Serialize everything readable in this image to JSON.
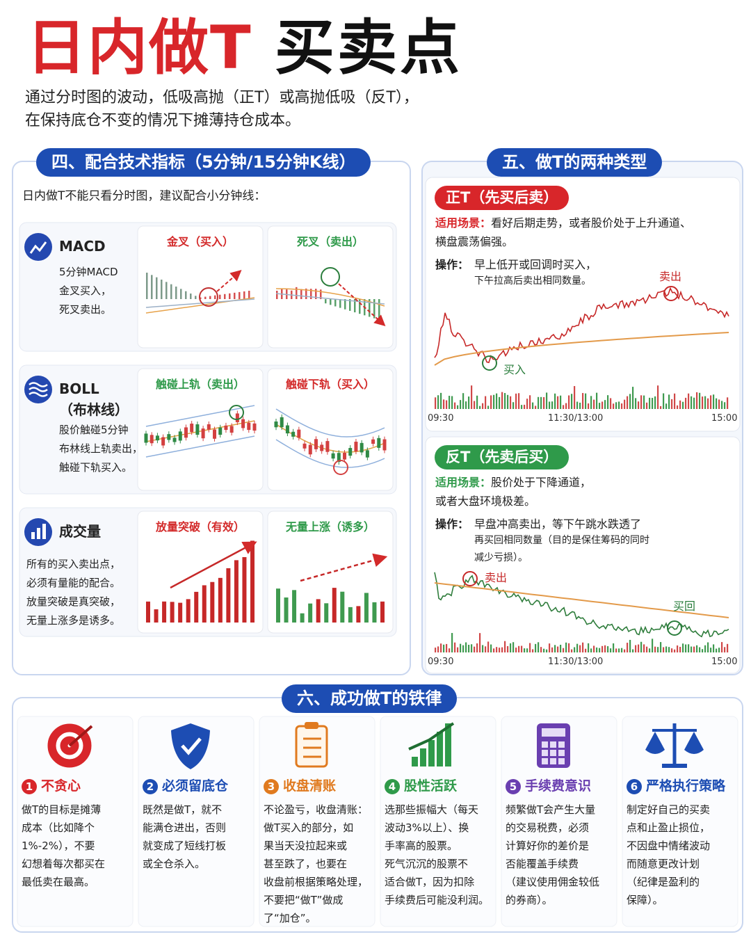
{
  "header": {
    "title_red": "日内做T",
    "title_black": "买卖点",
    "intro": [
      "通过分时图的波动，低吸高抛（正T）或高抛低吸（反T），",
      "在保持底仓不变的情况下摊薄持仓成本。"
    ]
  },
  "indicators": {
    "heading": "四、配合技术指标（5分钟/15分钟K线）",
    "note": "日内做T不能只看分时图，建议配合小分钟线：",
    "rows": [
      {
        "name": [
          "MACD"
        ],
        "desc": [
          "5分钟MACD",
          "金叉买入，",
          "死叉卖出。"
        ],
        "panels": [
          "金叉（买入）",
          "死叉（卖出）"
        ]
      },
      {
        "name": [
          "BOLL",
          "（布林线）"
        ],
        "desc": [
          "股价触碰5分钟",
          "布林线上轨卖出，",
          "触碰下轨买入。"
        ],
        "panels": [
          "触碰上轨（卖出）",
          "触碰下轨（买入）"
        ]
      },
      {
        "name": [
          "成交量"
        ],
        "desc": [
          "所有的买入卖出点，",
          "必须有量能的配合。",
          "放量突破是真突破，",
          "无量上涨多是诱多。"
        ],
        "panels": [
          "放量突破（有效）",
          "无量上涨（诱多）"
        ]
      }
    ]
  },
  "types": {
    "heading": "五、做T的两种类型",
    "cases": [
      {
        "tag": "正T（先买后卖）",
        "scene_label": "适用场景：",
        "scene": [
          "看好后期走势，或者股价处于上升通道、",
          "横盘震荡偏强。"
        ],
        "op_label": "操作：",
        "op": [
          "早上低开或回调时买入，",
          "下午拉高后卖出相同数量。"
        ],
        "sell": "卖出",
        "buy": "买入",
        "times": [
          "09:30",
          "11:30/13:00",
          "15:00"
        ]
      },
      {
        "tag": "反T（先卖后买）",
        "scene_label": "适用场景：",
        "scene": [
          "股价处于下降通道，",
          "或者大盘环境极差。"
        ],
        "op_label": "操作：",
        "op": [
          "早盘冲高卖出，等下午跳水跌透了",
          "再买回相同数量（目的是保住筹码的同时",
          "减少亏损）。"
        ],
        "sell": "卖出",
        "buy": "买回",
        "times": [
          "09:30",
          "11:30/13:00",
          "15:00"
        ]
      }
    ]
  },
  "rules": {
    "heading": "六、成功做T的铁律",
    "items": [
      {
        "num": 1,
        "title": "不贪心",
        "text": [
          "做T的目标是摊薄",
          "成本（比如降个",
          "1%-2%），不要",
          "幻想着每次都买在",
          "最低卖在最高。"
        ]
      },
      {
        "num": 2,
        "title": "必须留底仓",
        "text": [
          "既然是做T，就不",
          "能满仓进出，否则",
          "就变成了短线打板",
          "或全仓杀入。"
        ]
      },
      {
        "num": 3,
        "title": "收盘清账",
        "text": [
          "不论盈亏，收盘清账：",
          "做T买入的部分，如",
          "果当天没拉起来或",
          "甚至跌了，也要在",
          "收盘前根据策略处理，",
          "不要把“做T”做成",
          "了“加仓”。"
        ]
      },
      {
        "num": 4,
        "title": "股性活跃",
        "text": [
          "选那些振幅大（每天",
          "波动3%以上）、换",
          "手率高的股票。",
          "死气沉沉的股票不",
          "适合做T，因为扣除",
          "手续费后可能没利润。"
        ]
      },
      {
        "num": 5,
        "title": "手续费意识",
        "text": [
          "频繁做T会产生大量",
          "的交易税费，必须",
          "计算好你的差价是",
          "否能覆盖手续费",
          "（建议使用佣金较低",
          "的券商）。"
        ]
      },
      {
        "num": 6,
        "title": "严格执行策略",
        "text": [
          "制定好自己的买卖",
          "点和止盈止损位，",
          "不因盘中情绪波动",
          "而随意更改计划",
          "（纪律是盈利的",
          "保障）。"
        ]
      }
    ]
  }
}
